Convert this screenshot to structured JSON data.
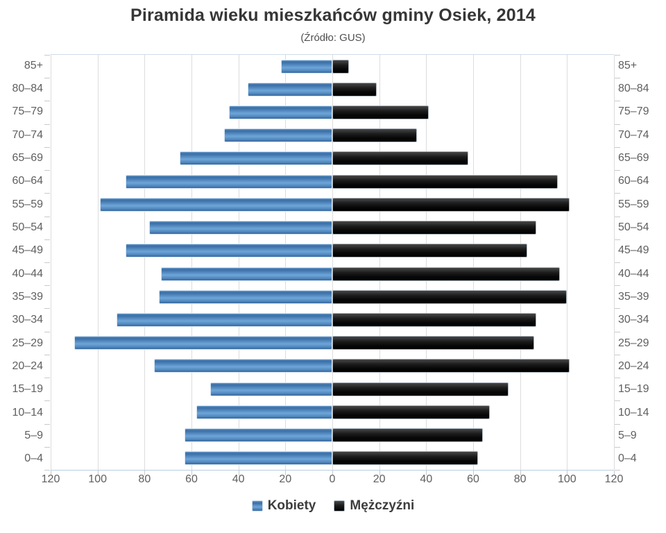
{
  "chart_data": {
    "type": "bar",
    "variant": "population-pyramid",
    "title": "Piramida wieku mieszkańców gminy Osiek, 2014",
    "subtitle": "(Źródło: GUS)",
    "categories": [
      "85+",
      "80–84",
      "75–79",
      "70–74",
      "65–69",
      "60–64",
      "55–59",
      "50–54",
      "45–49",
      "40–44",
      "35–39",
      "30–34",
      "25–29",
      "20–24",
      "15–19",
      "10–14",
      "5–9",
      "0–4"
    ],
    "series": [
      {
        "name": "Kobiety",
        "side": "left",
        "color": "#4e86be",
        "values": [
          22,
          36,
          44,
          46,
          65,
          88,
          99,
          78,
          88,
          73,
          74,
          92,
          110,
          76,
          52,
          58,
          63,
          63
        ]
      },
      {
        "name": "Mężczyźni",
        "side": "right",
        "color": "#141414",
        "values": [
          7,
          19,
          41,
          36,
          58,
          96,
          101,
          87,
          83,
          97,
          100,
          87,
          86,
          101,
          75,
          67,
          64,
          62
        ]
      }
    ],
    "xlim": [
      0,
      120
    ],
    "x_tick_step": 20,
    "x_tick_labels": [
      "120",
      "100",
      "80",
      "60",
      "40",
      "20",
      "0",
      "20",
      "40",
      "60",
      "80",
      "100",
      "120"
    ],
    "grid": true,
    "legend_position": "bottom",
    "colors": {
      "kobiety": "#4e86be",
      "mezczyzni": "#141414",
      "gridline": "#dcdcdc",
      "axis_text": "#5f5f5f"
    }
  }
}
